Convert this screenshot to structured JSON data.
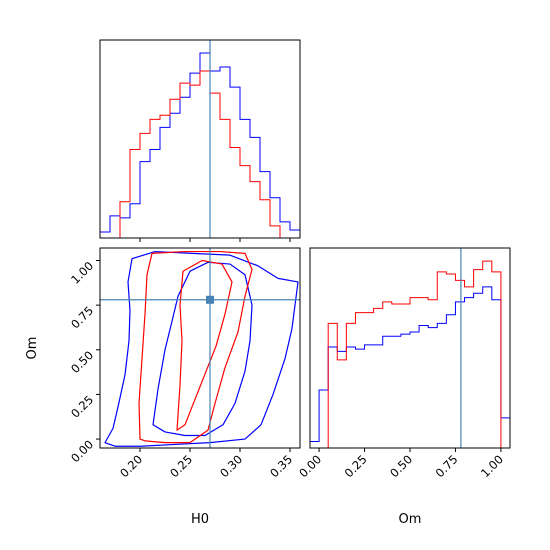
{
  "chart_data": [
    {
      "type": "histogram",
      "panel": "H0 marginal",
      "xlim": [
        0.16,
        0.36
      ],
      "x_ticks": [
        0.2,
        0.25,
        0.3,
        0.35
      ],
      "y_ticks": [],
      "truth": 0.27,
      "bin_edges": [
        0.16,
        0.17,
        0.18,
        0.19,
        0.2,
        0.21,
        0.22,
        0.23,
        0.24,
        0.25,
        0.26,
        0.27,
        0.28,
        0.29,
        0.3,
        0.31,
        0.32,
        0.33,
        0.34,
        0.35,
        0.36
      ],
      "series": [
        {
          "color": "#0000ff",
          "values": [
            0.03,
            0.11,
            0.1,
            0.17,
            0.38,
            0.44,
            0.55,
            0.62,
            0.7,
            0.82,
            0.92,
            0.83,
            0.85,
            0.75,
            0.59,
            0.5,
            0.33,
            0.2,
            0.08,
            0.04
          ]
        },
        {
          "color": "#ff0000",
          "values": [
            0.0,
            0.0,
            0.18,
            0.44,
            0.52,
            0.59,
            0.61,
            0.69,
            0.77,
            0.76,
            0.83,
            0.72,
            0.59,
            0.45,
            0.36,
            0.28,
            0.19,
            0.06,
            0.0,
            0.0
          ]
        }
      ]
    },
    {
      "type": "histogram",
      "panel": "Om marginal",
      "xlabel": "Om",
      "xlim": [
        -0.05,
        1.05
      ],
      "x_ticks": [
        0.0,
        0.25,
        0.5,
        0.75,
        1.0
      ],
      "y_ticks": [],
      "truth": 0.78,
      "bin_edges": [
        -0.05,
        0.0,
        0.05,
        0.1,
        0.15,
        0.2,
        0.25,
        0.3,
        0.35,
        0.4,
        0.45,
        0.5,
        0.55,
        0.6,
        0.65,
        0.7,
        0.75,
        0.8,
        0.85,
        0.9,
        0.95,
        1.0,
        1.05
      ],
      "series": [
        {
          "color": "#0000ff",
          "values": [
            0.03,
            0.27,
            0.47,
            0.45,
            0.47,
            0.46,
            0.48,
            0.48,
            0.52,
            0.52,
            0.53,
            0.54,
            0.57,
            0.56,
            0.58,
            0.62,
            0.68,
            0.7,
            0.72,
            0.75,
            0.69,
            0.14
          ]
        },
        {
          "color": "#ff0000",
          "values": [
            0.0,
            0.0,
            0.58,
            0.41,
            0.58,
            0.63,
            0.63,
            0.65,
            0.68,
            0.67,
            0.67,
            0.7,
            0.7,
            0.69,
            0.82,
            0.81,
            0.78,
            0.75,
            0.83,
            0.87,
            0.82,
            0.0
          ]
        }
      ]
    },
    {
      "type": "contour",
      "panel": "H0 vs Om joint",
      "xlabel": "H0",
      "ylabel": "Om",
      "xlim": [
        0.16,
        0.36
      ],
      "ylim": [
        -0.05,
        1.07
      ],
      "x_ticks": [
        0.2,
        0.25,
        0.3,
        0.35
      ],
      "y_ticks": [
        0.0,
        0.25,
        0.5,
        0.75,
        1.0
      ],
      "truth": [
        0.27,
        0.78
      ],
      "series": [
        {
          "color": "#0000ff",
          "contours": [
            [
              [
                0.165,
                -0.02
              ],
              [
                0.173,
                0.06
              ],
              [
                0.178,
                0.18
              ],
              [
                0.185,
                0.36
              ],
              [
                0.189,
                0.55
              ],
              [
                0.19,
                0.72
              ],
              [
                0.188,
                0.88
              ],
              [
                0.192,
                1.01
              ],
              [
                0.215,
                1.05
              ],
              [
                0.252,
                1.04
              ],
              [
                0.29,
                1.03
              ],
              [
                0.318,
                0.97
              ],
              [
                0.338,
                0.9
              ],
              [
                0.358,
                0.88
              ],
              [
                0.352,
                0.62
              ],
              [
                0.345,
                0.45
              ],
              [
                0.333,
                0.25
              ],
              [
                0.321,
                0.08
              ],
              [
                0.305,
                0.0
              ],
              [
                0.27,
                -0.02
              ],
              [
                0.235,
                -0.03
              ],
              [
                0.2,
                -0.04
              ],
              [
                0.175,
                -0.04
              ],
              [
                0.165,
                -0.02
              ]
            ],
            [
              [
                0.213,
                0.08
              ],
              [
                0.218,
                0.28
              ],
              [
                0.225,
                0.5
              ],
              [
                0.232,
                0.66
              ],
              [
                0.238,
                0.8
              ],
              [
                0.25,
                0.94
              ],
              [
                0.268,
                0.99
              ],
              [
                0.29,
                0.98
              ],
              [
                0.305,
                0.92
              ],
              [
                0.312,
                0.75
              ],
              [
                0.31,
                0.55
              ],
              [
                0.305,
                0.38
              ],
              [
                0.295,
                0.2
              ],
              [
                0.283,
                0.08
              ],
              [
                0.265,
                0.02
              ],
              [
                0.245,
                0.02
              ],
              [
                0.225,
                0.04
              ],
              [
                0.213,
                0.08
              ]
            ]
          ]
        },
        {
          "color": "#ff0000",
          "contours": [
            [
              [
                0.2,
                0.0
              ],
              [
                0.199,
                0.2
              ],
              [
                0.202,
                0.45
              ],
              [
                0.205,
                0.7
              ],
              [
                0.207,
                0.92
              ],
              [
                0.212,
                1.04
              ],
              [
                0.245,
                1.05
              ],
              [
                0.28,
                1.05
              ],
              [
                0.305,
                1.04
              ],
              [
                0.312,
                0.95
              ],
              [
                0.305,
                0.8
              ],
              [
                0.298,
                0.6
              ],
              [
                0.285,
                0.4
              ],
              [
                0.275,
                0.2
              ],
              [
                0.268,
                0.05
              ],
              [
                0.25,
                -0.02
              ],
              [
                0.225,
                -0.02
              ],
              [
                0.205,
                -0.01
              ],
              [
                0.2,
                0.0
              ]
            ],
            [
              [
                0.237,
                0.05
              ],
              [
                0.24,
                0.3
              ],
              [
                0.242,
                0.55
              ],
              [
                0.24,
                0.75
              ],
              [
                0.243,
                0.94
              ],
              [
                0.262,
                1.0
              ],
              [
                0.282,
                0.98
              ],
              [
                0.292,
                0.88
              ],
              [
                0.285,
                0.7
              ],
              [
                0.276,
                0.52
              ],
              [
                0.264,
                0.35
              ],
              [
                0.252,
                0.18
              ],
              [
                0.245,
                0.08
              ],
              [
                0.237,
                0.05
              ]
            ]
          ]
        }
      ]
    }
  ]
}
